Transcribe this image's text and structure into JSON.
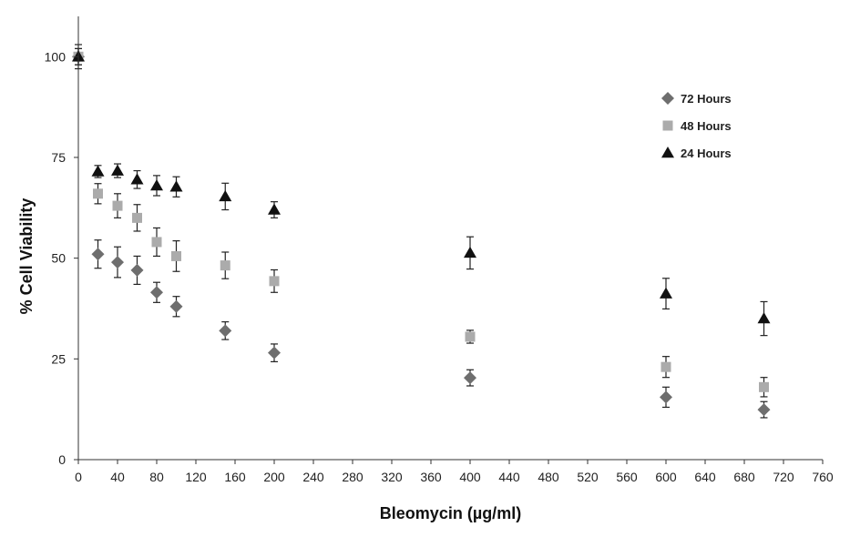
{
  "chart_data": {
    "type": "scatter",
    "title": "",
    "xlabel": "Bleomycin (µg/ml)",
    "ylabel": "% Cell Viability",
    "xlim": [
      0,
      760
    ],
    "ylim": [
      0,
      110
    ],
    "x_ticks": [
      0,
      40,
      80,
      120,
      160,
      200,
      240,
      280,
      320,
      360,
      400,
      440,
      480,
      520,
      560,
      600,
      640,
      680,
      720,
      760
    ],
    "y_ticks": [
      0,
      25,
      50,
      75,
      100
    ],
    "error_bars": true,
    "grid": false,
    "legend_position": "top-right",
    "series": [
      {
        "name": "72 Hours",
        "marker": "diamond",
        "color": "#6e6e6e",
        "x": [
          0,
          20,
          40,
          60,
          80,
          100,
          150,
          200,
          400,
          600,
          700
        ],
        "y": [
          100,
          51,
          49,
          47,
          41.5,
          38,
          32,
          26.5,
          20.3,
          15.5,
          12.4
        ],
        "err": [
          2,
          3.5,
          3.8,
          3.5,
          2.5,
          2.5,
          2.2,
          2.2,
          2,
          2.5,
          2
        ]
      },
      {
        "name": "48 Hours",
        "marker": "square",
        "color": "#ababab",
        "x": [
          0,
          20,
          40,
          60,
          80,
          100,
          150,
          200,
          400,
          600,
          700
        ],
        "y": [
          100,
          66,
          63,
          60,
          54,
          50.5,
          48.2,
          44.3,
          30.5,
          23,
          18
        ],
        "err": [
          2,
          2.5,
          3,
          3.3,
          3.5,
          3.8,
          3.3,
          2.8,
          1.6,
          2.6,
          2.4
        ]
      },
      {
        "name": "24 Hours",
        "marker": "triangle",
        "color": "#111111",
        "x": [
          0,
          20,
          40,
          60,
          80,
          100,
          150,
          200,
          400,
          600,
          700
        ],
        "y": [
          100,
          71.5,
          71.7,
          69.5,
          68,
          67.7,
          65.3,
          62,
          51.3,
          41.2,
          35
        ],
        "err": [
          3,
          1.5,
          1.7,
          2.2,
          2.5,
          2.5,
          3.3,
          2,
          4,
          3.8,
          4.2
        ]
      }
    ]
  }
}
